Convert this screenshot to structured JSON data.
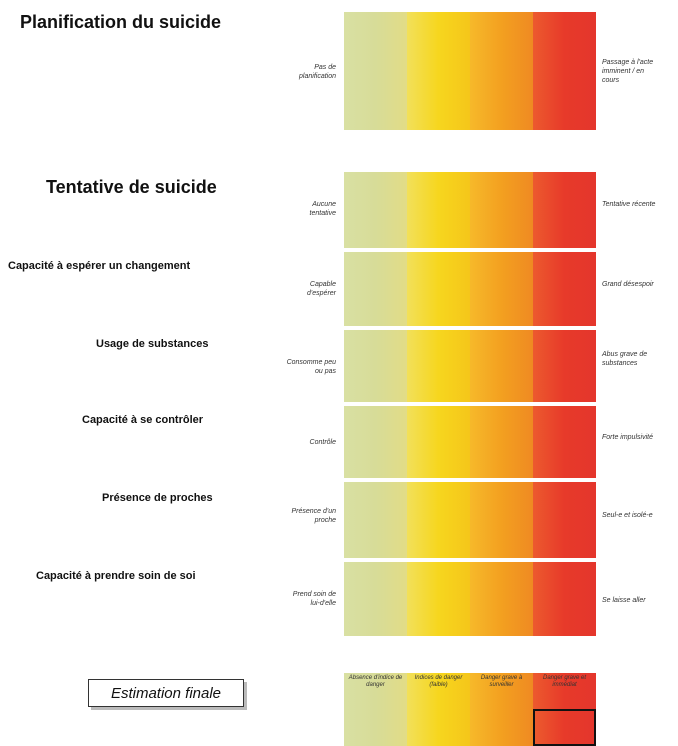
{
  "criteria": [
    {
      "title": "Planification du suicide",
      "left": "Pas de planification",
      "right": "Passage à l'acte imminent / en cours"
    },
    {
      "title": "Tentative de suicide",
      "left": "Aucune tentative",
      "right": "Tentative récente"
    },
    {
      "title": "Capacité à espérer un changement",
      "left": "Capable d'espérer",
      "right": "Grand désespoir"
    },
    {
      "title": "Usage de substances",
      "left": "Consomme peu ou pas",
      "right": "Abus grave de substances"
    },
    {
      "title": "Capacité à se contrôler",
      "left": "Contrôle",
      "right": "Forte impulsivité"
    },
    {
      "title": "Présence de proches",
      "left": "Présence d'un proche",
      "right": "Seul-e et isolé-e"
    },
    {
      "title": "Capacité à prendre soin de soi",
      "left": "Prend soin de lui-d'elle",
      "right": "Se laisse aller"
    }
  ],
  "final": {
    "title": "Estimation finale",
    "levels": [
      "Absence d'indice de danger",
      "Indices de danger (faible)",
      "Danger grave à surveiller",
      "Danger grave et immédiat"
    ],
    "selected_index": 3
  },
  "colors": {
    "level_0": "#d9e0a3",
    "level_1": "#f6d61e",
    "level_2": "#f3a020",
    "level_3": "#e73a2a"
  }
}
